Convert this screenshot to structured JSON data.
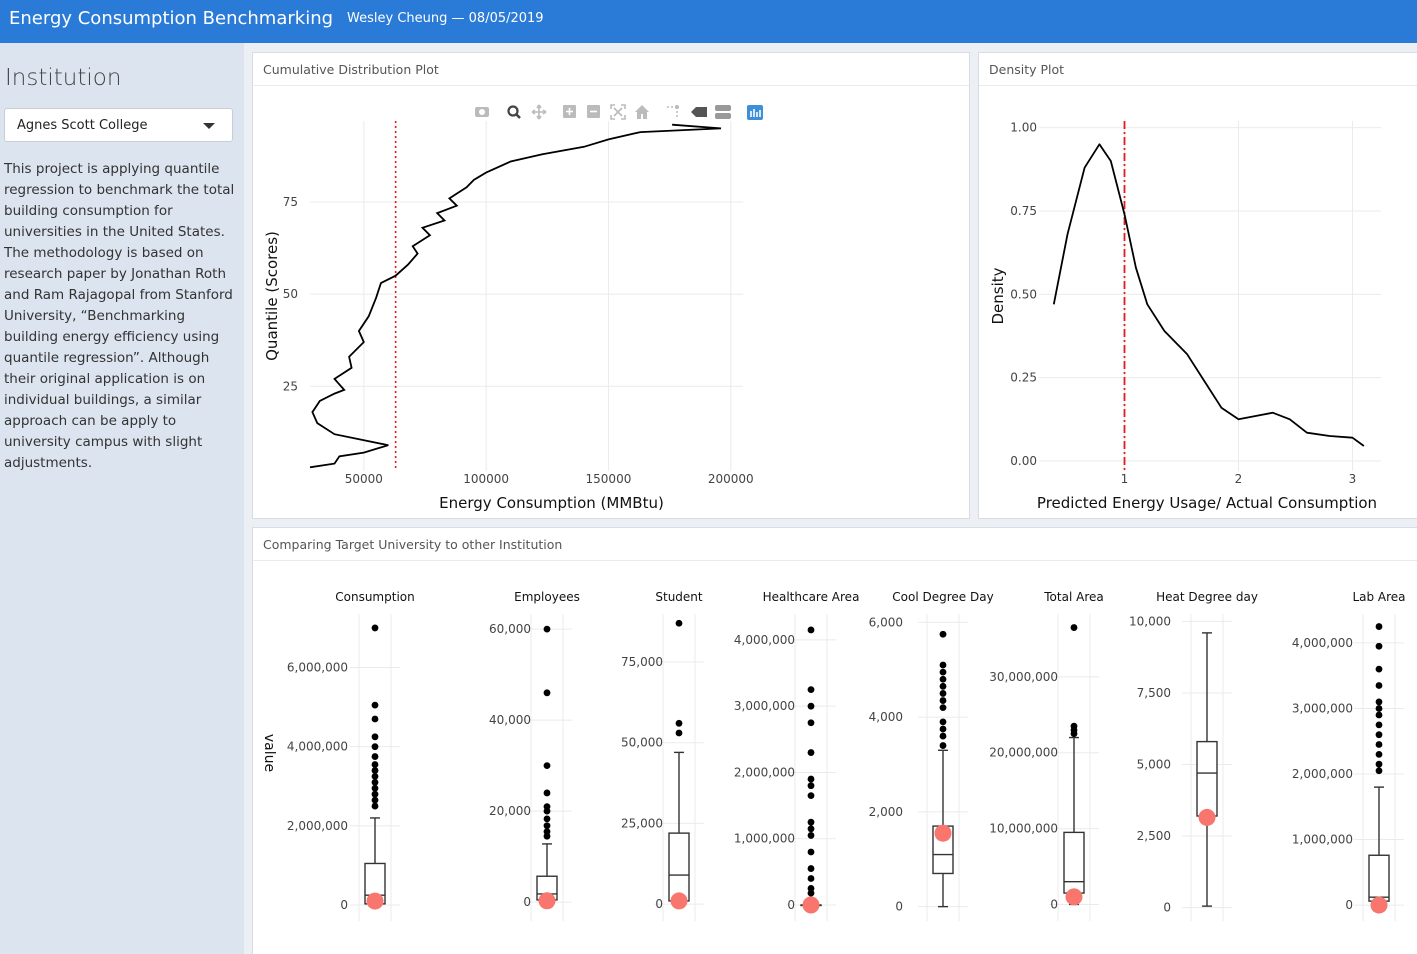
{
  "header": {
    "title": "Energy Consumption Benchmarking",
    "subtitle": "Wesley Cheung — 08/05/2019"
  },
  "sidebar": {
    "heading": "Institution",
    "select": {
      "value": "Agnes Scott College"
    },
    "description": "This project is applying quantile regression to benchmark the total building consumption for universities in the United States. The methodology is based on research paper by Jonathan Roth and Ram Rajagopal from Stanford University, “Benchmarking building energy efficiency using quantile regression”. Although their original application is on individual buildings, a similar approach can be apply to university campus with slight adjustments."
  },
  "panels": {
    "cdf_title": "Cumulative Distribution Plot",
    "density_title": "Density Plot",
    "compare_title": "Comparing Target University to other Institution"
  },
  "modebar": {
    "icons": [
      "camera-icon",
      "zoom-icon",
      "pan-icon",
      "zoom-in-icon",
      "zoom-out-icon",
      "autoscale-icon",
      "reset-axes-icon",
      "spike-lines-icon",
      "hover-closest-icon",
      "hover-compare-icon",
      "plotly-logo-icon"
    ]
  },
  "colors": {
    "header": "#2a7ad7",
    "reference_line": "#e41a1c",
    "target_point": "#f8766d"
  },
  "chart_data": [
    {
      "type": "line",
      "xlabel": "Energy Consumption (MMBtu)",
      "ylabel": "Quantile (Scores)",
      "xlim": [
        28000,
        205000
      ],
      "ylim": [
        2,
        97
      ],
      "x_ticks": [
        50000,
        100000,
        150000,
        200000
      ],
      "x_tick_labels": [
        "50000",
        "100000",
        "150000",
        "200000"
      ],
      "y_ticks": [
        25,
        50,
        75
      ],
      "y_tick_labels": [
        "25",
        "50",
        "75"
      ],
      "grid": true,
      "reference_x": 63000,
      "x": [
        28000,
        38000,
        40000,
        50000,
        60000,
        38000,
        31000,
        29000,
        32000,
        38000,
        42000,
        38000,
        45000,
        44000,
        50000,
        48000,
        52000,
        55000,
        57000,
        63000,
        68000,
        72000,
        70000,
        77000,
        74000,
        83000,
        80000,
        88000,
        85000,
        92000,
        95000,
        100000,
        110000,
        123000,
        140000,
        150000,
        163000,
        196000,
        176000
      ],
      "y": [
        3,
        4,
        6,
        7,
        9,
        12,
        15,
        18,
        21,
        23,
        24,
        27,
        30,
        33,
        37,
        40,
        44,
        49,
        53,
        55,
        58,
        61,
        63,
        66,
        68,
        70,
        72,
        74,
        76,
        79,
        81,
        83,
        86,
        88,
        90,
        92,
        94,
        95,
        96
      ]
    },
    {
      "type": "line",
      "xlabel": "Predicted Energy Usage/ Actual Consumption",
      "ylabel": "Density",
      "xlim": [
        0.25,
        3.25
      ],
      "ylim": [
        -0.03,
        1.02
      ],
      "x_ticks": [
        1,
        2,
        3
      ],
      "x_tick_labels": [
        "1",
        "2",
        "3"
      ],
      "y_ticks": [
        0,
        0.25,
        0.5,
        0.75,
        1.0
      ],
      "y_tick_labels": [
        "0.00",
        "0.25",
        "0.50",
        "0.75",
        "1.00"
      ],
      "grid": true,
      "reference_x": 1,
      "x": [
        0.38,
        0.5,
        0.65,
        0.78,
        0.88,
        1.0,
        1.1,
        1.2,
        1.35,
        1.55,
        1.7,
        1.85,
        2.0,
        2.15,
        2.3,
        2.45,
        2.6,
        2.8,
        3.0,
        3.1
      ],
      "y": [
        0.47,
        0.68,
        0.88,
        0.95,
        0.9,
        0.74,
        0.58,
        0.47,
        0.39,
        0.32,
        0.24,
        0.16,
        0.125,
        0.135,
        0.145,
        0.125,
        0.085,
        0.075,
        0.07,
        0.045
      ]
    },
    {
      "type": "box",
      "ylabel": "value",
      "facets": [
        {
          "name": "Consumption",
          "ylim": [
            -100000,
            7200000
          ],
          "ticks": [
            0,
            2000000,
            4000000,
            6000000
          ],
          "tick_labels": [
            "0",
            "2,000,000",
            "4,000,000",
            "6,000,000"
          ],
          "q1": 30000,
          "median": 250000,
          "q3": 1050000,
          "whisker_low": 0,
          "whisker_high": 2200000,
          "outliers": [
            2500000,
            2650000,
            2800000,
            2950000,
            3100000,
            3250000,
            3400000,
            3550000,
            3750000,
            4000000,
            4250000,
            4700000,
            5050000,
            7000000
          ],
          "target": 100000
        },
        {
          "name": "Employees",
          "ylim": [
            -1500,
            62000
          ],
          "ticks": [
            0,
            20000,
            40000,
            60000
          ],
          "tick_labels": [
            "0",
            "20,000",
            "40,000",
            "60,000"
          ],
          "q1": 500,
          "median": 1800,
          "q3": 5700,
          "whisker_low": 0,
          "whisker_high": 12800,
          "outliers": [
            14500,
            15500,
            16800,
            18300,
            20000,
            21000,
            24000,
            30000,
            46000,
            60000
          ],
          "target": 300
        },
        {
          "name": "Student",
          "ylim": [
            -1500,
            88000
          ],
          "ticks": [
            0,
            25000,
            50000,
            75000
          ],
          "tick_labels": [
            "0",
            "25,000",
            "50,000",
            "75,000"
          ],
          "q1": 1000,
          "median": 9000,
          "q3": 22000,
          "whisker_low": 0,
          "whisker_high": 47000,
          "outliers": [
            53000,
            56000,
            87000
          ],
          "target": 1000
        },
        {
          "name": "Healthcare Area",
          "ylim": [
            -60000,
            4300000
          ],
          "ticks": [
            0,
            1000000,
            2000000,
            3000000,
            4000000
          ],
          "tick_labels": [
            "0",
            "1,000,000",
            "2,000,000",
            "3,000,000",
            "4,000,000"
          ],
          "q1": 0,
          "median": 0,
          "q3": 0,
          "whisker_low": 0,
          "whisker_high": 0,
          "outliers": [
            80000,
            180000,
            250000,
            400000,
            550000,
            800000,
            1050000,
            1150000,
            1250000,
            1650000,
            1800000,
            1900000,
            2300000,
            2750000,
            3000000,
            3250000,
            4150000
          ],
          "target": 0
        },
        {
          "name": "Cool Degree Day",
          "ylim": [
            -50,
            6050
          ],
          "ticks": [
            0,
            2000,
            4000,
            6000
          ],
          "tick_labels": [
            "0",
            "2,000",
            "4,000",
            "6,000"
          ],
          "q1": 700,
          "median": 1100,
          "q3": 1700,
          "whisker_low": 0,
          "whisker_high": 3300,
          "outliers": [
            3400,
            3600,
            3750,
            3900,
            4200,
            4350,
            4500,
            4650,
            4800,
            4950,
            5100,
            5750
          ],
          "target": 1550
        },
        {
          "name": "Total Area",
          "ylim": [
            -600000,
            37500000
          ],
          "ticks": [
            0,
            10000000,
            20000000,
            30000000
          ],
          "tick_labels": [
            "0",
            "10,000,000",
            "20,000,000",
            "30,000,000"
          ],
          "q1": 1500000,
          "median": 3000000,
          "q3": 9500000,
          "whisker_low": 0,
          "whisker_high": 22000000,
          "outliers": [
            22500000,
            23000000,
            23500000,
            36500000
          ],
          "target": 1000000
        },
        {
          "name": "Heat Degree day",
          "ylim": [
            -50,
            10050
          ],
          "ticks": [
            0,
            2500,
            5000,
            7500,
            10000
          ],
          "tick_labels": [
            "0",
            "2,500",
            "5,000",
            "7,500",
            "10,000"
          ],
          "q1": 3200,
          "median": 4700,
          "q3": 5800,
          "whisker_low": 50,
          "whisker_high": 9600,
          "outliers": [],
          "target": 3150
        },
        {
          "name": "Lab Area",
          "ylim": [
            -60000,
            4350000
          ],
          "ticks": [
            0,
            1000000,
            2000000,
            3000000,
            4000000
          ],
          "tick_labels": [
            "0",
            "1,000,000",
            "2,000,000",
            "3,000,000",
            "4,000,000"
          ],
          "q1": 60000,
          "median": 120000,
          "q3": 760000,
          "whisker_low": 0,
          "whisker_high": 1800000,
          "outliers": [
            2050000,
            2150000,
            2300000,
            2450000,
            2600000,
            2750000,
            2900000,
            3000000,
            3100000,
            3350000,
            3600000,
            3950000,
            4250000
          ],
          "target": 0
        }
      ]
    }
  ]
}
